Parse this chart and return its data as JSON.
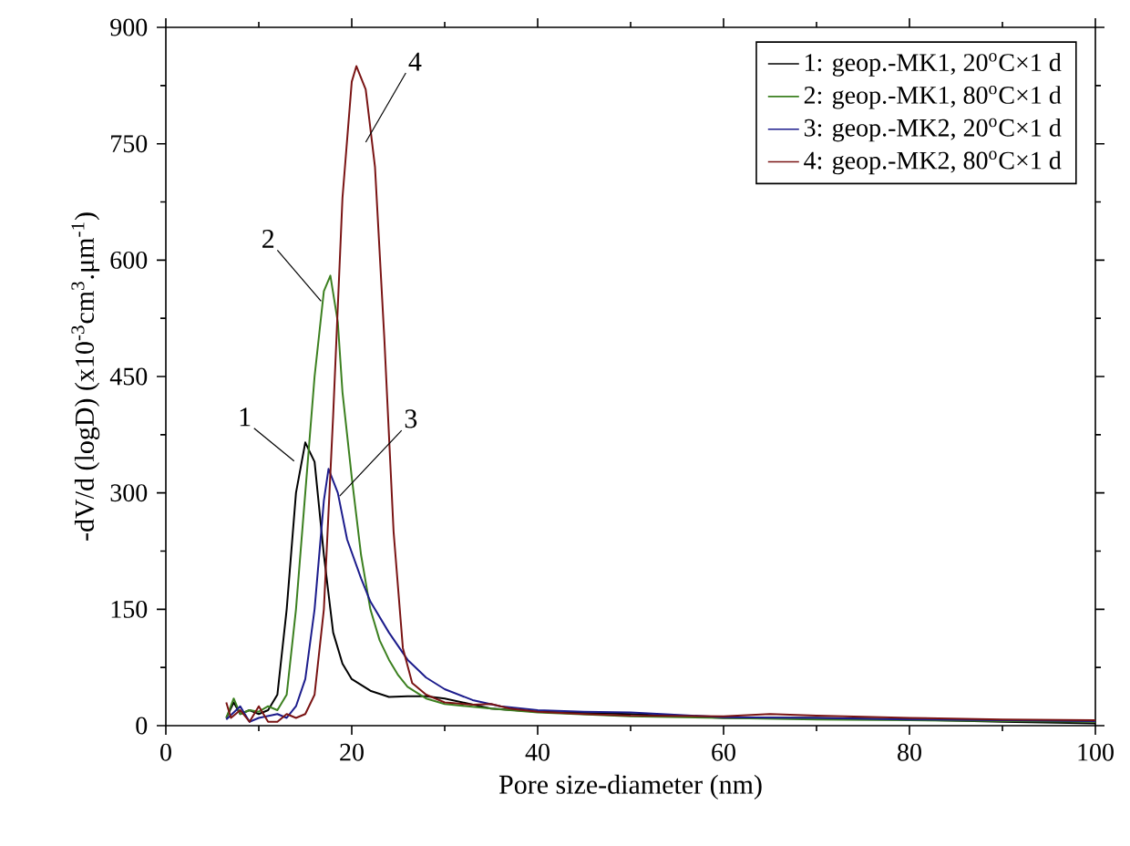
{
  "chart_data": {
    "type": "line",
    "xlabel": "Pore size-diameter (nm)",
    "ylabel": "-dV/d (logD) (x10$^{-3}$cm$^{3}$.μm$^{-1}$)",
    "xlim": [
      0,
      100
    ],
    "ylim": [
      0,
      900
    ],
    "xticks": [
      0,
      20,
      40,
      60,
      80,
      100
    ],
    "yticks": [
      0,
      150,
      300,
      450,
      600,
      750,
      900
    ],
    "grid": false,
    "legend": "top right",
    "line_style": "solid",
    "series": [
      {
        "name": "1: geop.-MK1, 20$^{o}$C×1 d",
        "color": "#000000",
        "x": [
          6.5,
          7.3,
          8,
          9,
          10,
          11,
          12,
          13,
          14,
          15,
          16,
          17,
          18,
          19,
          20,
          22,
          24,
          26,
          28,
          30,
          35,
          40,
          50,
          60,
          70,
          80,
          90,
          100
        ],
        "values": [
          10,
          30,
          15,
          20,
          15,
          20,
          40,
          150,
          300,
          365,
          340,
          220,
          120,
          80,
          60,
          45,
          37,
          38,
          38,
          35,
          22,
          18,
          15,
          10,
          10,
          8,
          5,
          3
        ]
      },
      {
        "name": "2: geop.-MK1, 80$^{o}$C×1 d",
        "color": "#3c8020",
        "x": [
          6.5,
          7.3,
          8,
          9,
          10,
          11,
          12,
          13,
          14,
          15,
          16,
          17,
          17.7,
          18.5,
          19,
          20,
          21,
          22,
          23,
          24,
          25,
          26,
          28,
          30,
          35,
          40,
          50,
          60,
          70,
          80,
          100
        ],
        "values": [
          10,
          35,
          15,
          20,
          18,
          25,
          20,
          40,
          150,
          300,
          450,
          560,
          580,
          520,
          430,
          320,
          220,
          150,
          110,
          85,
          65,
          50,
          35,
          28,
          22,
          17,
          12,
          10,
          8,
          7,
          5
        ]
      },
      {
        "name": "3: geop.-MK2, 20$^{o}$C×1 d",
        "color": "#1c1c8c",
        "x": [
          6.5,
          8,
          9,
          10,
          12,
          13,
          14,
          15,
          16,
          17,
          17.5,
          18.5,
          19.5,
          21,
          22,
          24,
          26,
          28,
          30,
          33,
          36,
          40,
          45,
          50,
          55,
          60,
          70,
          80,
          90,
          100
        ],
        "values": [
          8,
          25,
          5,
          10,
          15,
          10,
          25,
          60,
          150,
          290,
          331,
          300,
          240,
          190,
          160,
          120,
          85,
          62,
          47,
          33,
          25,
          20,
          18,
          17,
          14,
          11,
          10,
          8,
          7,
          6
        ]
      },
      {
        "name": "4: geop.-MK2, 80$^{o}$C×1 d",
        "color": "#7a1414",
        "x": [
          6.5,
          7,
          8,
          9,
          10,
          11,
          12,
          13,
          14,
          15,
          16,
          17,
          18,
          19,
          20,
          20.5,
          21.5,
          22.5,
          23.5,
          24.5,
          25.5,
          26.5,
          28,
          30,
          33,
          35,
          37,
          40,
          45,
          50,
          60,
          65,
          70,
          80,
          90,
          100
        ],
        "values": [
          30,
          10,
          20,
          5,
          25,
          5,
          5,
          15,
          10,
          15,
          40,
          150,
          400,
          680,
          830,
          850,
          820,
          720,
          500,
          250,
          100,
          55,
          40,
          30,
          27,
          28,
          22,
          18,
          15,
          13,
          12,
          15,
          13,
          10,
          8,
          7
        ]
      }
    ],
    "annotations": [
      {
        "text": "1",
        "x": 13.8,
        "y": 341
      },
      {
        "text": "2",
        "x": 16.7,
        "y": 547
      },
      {
        "text": "3",
        "x": 18.7,
        "y": 296
      },
      {
        "text": "4",
        "x": 21.5,
        "y": 752
      }
    ]
  }
}
